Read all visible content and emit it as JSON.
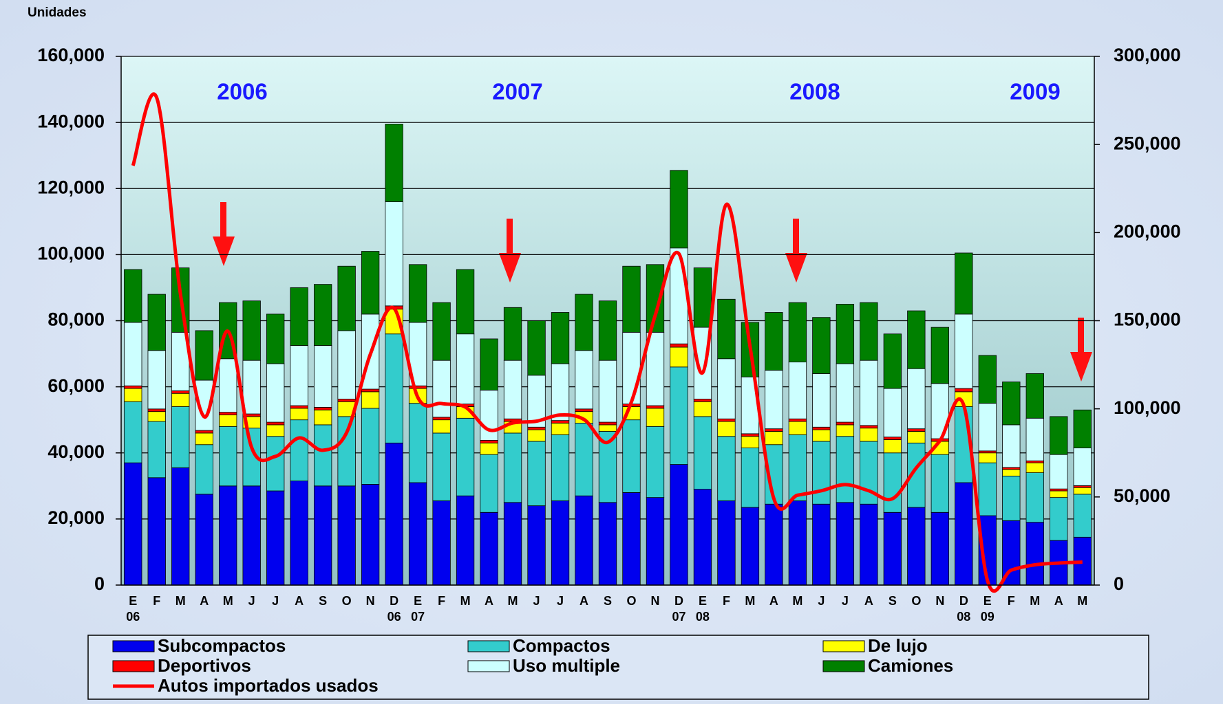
{
  "chart_data": {
    "type": "bar",
    "y_axis_label": "Unidades",
    "categories": [
      "E",
      "F",
      "M",
      "A",
      "M",
      "J",
      "J",
      "A",
      "S",
      "O",
      "N",
      "D",
      "E",
      "F",
      "M",
      "A",
      "M",
      "J",
      "J",
      "A",
      "S",
      "O",
      "N",
      "D",
      "E",
      "F",
      "M",
      "A",
      "M",
      "J",
      "J",
      "A",
      "S",
      "O",
      "N",
      "D",
      "E",
      "F",
      "M",
      "A",
      "M"
    ],
    "x_sublabels": [
      "06",
      null,
      null,
      null,
      null,
      null,
      null,
      null,
      null,
      null,
      null,
      "06",
      "07",
      null,
      null,
      null,
      null,
      null,
      null,
      null,
      null,
      null,
      null,
      "07",
      "08",
      null,
      null,
      null,
      null,
      null,
      null,
      null,
      null,
      null,
      null,
      "08",
      "09",
      null,
      null,
      null,
      null
    ],
    "annotations": [
      "2006",
      "2007",
      "2008",
      "2009"
    ],
    "stacked": true,
    "ylim": [
      0,
      160000
    ],
    "yticks": [
      0,
      {
        "value": 20000,
        "label": "20,000"
      },
      {
        "value": 40000,
        "label": "40,000"
      },
      {
        "value": 60000,
        "label": "60,000"
      },
      {
        "value": 80000,
        "label": "80,000"
      },
      {
        "value": 100000,
        "label": "100,000"
      },
      {
        "value": 120000,
        "label": "120,000"
      },
      {
        "value": 140000,
        "label": "140,000"
      },
      {
        "value": 160000,
        "label": "160,000"
      }
    ],
    "y2lim": [
      0,
      300000
    ],
    "y2ticks": [
      0,
      {
        "value": 50000,
        "label": "50,000"
      },
      {
        "value": 100000,
        "label": "100,000"
      },
      {
        "value": 150000,
        "label": "150,000"
      },
      {
        "value": 200000,
        "label": "200,000"
      },
      {
        "value": 250000,
        "label": "250,000"
      },
      {
        "value": 300000,
        "label": "300,000"
      }
    ],
    "grid": true,
    "legend": "bottom",
    "series": [
      {
        "name": "Subcompactos",
        "color": "#0000ee",
        "values": [
          37000,
          32500,
          35500,
          27500,
          30000,
          30000,
          28500,
          31500,
          30000,
          30000,
          30500,
          43000,
          31000,
          25500,
          27000,
          22000,
          25000,
          24000,
          25500,
          27000,
          25000,
          28000,
          26500,
          36500,
          29000,
          25500,
          23500,
          24500,
          25500,
          24500,
          25000,
          24500,
          22000,
          23500,
          22000,
          31000,
          21000,
          19500,
          19000,
          13500,
          14500
        ]
      },
      {
        "name": "Compactos",
        "color": "#33cccc",
        "values": [
          18500,
          17000,
          18500,
          15000,
          18000,
          17500,
          16500,
          18500,
          18500,
          21000,
          23000,
          33000,
          24000,
          20500,
          23500,
          17500,
          21000,
          19500,
          20000,
          22000,
          21500,
          22000,
          21500,
          29500,
          22000,
          19500,
          18000,
          18000,
          20000,
          19000,
          20000,
          19000,
          18000,
          19500,
          17500,
          23000,
          16000,
          13500,
          15000,
          13000,
          13000
        ]
      },
      {
        "name": "De lujo",
        "color": "#ffff00",
        "values": [
          4000,
          3000,
          4000,
          3500,
          3500,
          3500,
          3500,
          3500,
          4500,
          4500,
          5000,
          7500,
          4500,
          4000,
          3500,
          3500,
          3500,
          3500,
          3500,
          3500,
          2000,
          4000,
          5500,
          6000,
          4500,
          4500,
          3500,
          4000,
          4000,
          3500,
          3500,
          4000,
          4000,
          3500,
          4000,
          4500,
          3000,
          2000,
          3000,
          2000,
          2000
        ]
      },
      {
        "name": "Deportivos",
        "color": "#ff0000",
        "values": [
          800,
          800,
          800,
          800,
          800,
          800,
          800,
          800,
          800,
          800,
          800,
          1000,
          800,
          800,
          800,
          800,
          800,
          800,
          800,
          800,
          800,
          800,
          800,
          1000,
          800,
          800,
          800,
          800,
          800,
          800,
          800,
          800,
          800,
          800,
          800,
          1000,
          600,
          600,
          600,
          600,
          600
        ]
      },
      {
        "name": "Uso multiple",
        "color": "#ccffff",
        "values": [
          19200,
          17700,
          17700,
          15200,
          16200,
          16200,
          17700,
          18200,
          18700,
          20700,
          22700,
          31500,
          19200,
          17200,
          21200,
          15200,
          17700,
          15700,
          17200,
          17700,
          18700,
          21700,
          22200,
          29000,
          21700,
          18200,
          17200,
          17700,
          17200,
          16200,
          17700,
          19700,
          14700,
          18200,
          16700,
          22500,
          14400,
          12900,
          12900,
          10400,
          11400
        ]
      },
      {
        "name": "Camiones",
        "color": "#008000",
        "values": [
          16000,
          17000,
          19500,
          15000,
          17000,
          18000,
          15000,
          17500,
          18500,
          19500,
          19000,
          23500,
          17500,
          17500,
          19500,
          15500,
          16000,
          16500,
          15500,
          17000,
          18000,
          20000,
          20500,
          23500,
          18000,
          18000,
          16500,
          17500,
          18000,
          17000,
          18000,
          17500,
          16500,
          17500,
          17000,
          18500,
          14500,
          13000,
          13500,
          11500,
          11500
        ]
      },
      {
        "name": "Autos importados usados",
        "color": "#ff0000",
        "type": "line",
        "axis": "y2",
        "values": [
          238000,
          276500,
          165000,
          95500,
          144000,
          78000,
          73000,
          83500,
          76500,
          86500,
          131000,
          157000,
          106500,
          103000,
          101000,
          88000,
          92000,
          93000,
          96500,
          94000,
          81000,
          104000,
          153000,
          188000,
          120500,
          216000,
          135000,
          49000,
          51000,
          53500,
          57000,
          53500,
          49000,
          66500,
          82000,
          102000,
          2500,
          8500,
          11500,
          12500,
          13000
        ]
      }
    ]
  }
}
